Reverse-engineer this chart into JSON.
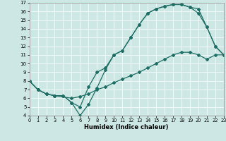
{
  "xlabel": "Humidex (Indice chaleur)",
  "xlim": [
    0,
    23
  ],
  "ylim": [
    4,
    17
  ],
  "xticks": [
    0,
    1,
    2,
    3,
    4,
    5,
    6,
    7,
    8,
    9,
    10,
    11,
    12,
    13,
    14,
    15,
    16,
    17,
    18,
    19,
    20,
    21,
    22,
    23
  ],
  "yticks": [
    4,
    5,
    6,
    7,
    8,
    9,
    10,
    11,
    12,
    13,
    14,
    15,
    16,
    17
  ],
  "bg_color": "#cde8e4",
  "line_color": "#1e6e65",
  "grid_color": "#ffffff",
  "line1_x": [
    0,
    1,
    2,
    3,
    4,
    5,
    6,
    7,
    8,
    9,
    10,
    11,
    12,
    13,
    14,
    15,
    16,
    17,
    18,
    19,
    20,
    21,
    22,
    23
  ],
  "line1_y": [
    8.0,
    7.0,
    6.5,
    6.3,
    6.3,
    5.5,
    4.0,
    5.3,
    7.2,
    9.3,
    11.0,
    11.5,
    13.0,
    14.5,
    15.8,
    16.3,
    16.6,
    16.8,
    16.8,
    16.5,
    16.3,
    14.2,
    12.0,
    11.0
  ],
  "line2_x": [
    0,
    1,
    2,
    3,
    4,
    5,
    6,
    7,
    8,
    9,
    10,
    11,
    12,
    13,
    14,
    15,
    16,
    17,
    18,
    19,
    20,
    21,
    22,
    23
  ],
  "line2_y": [
    8.0,
    7.0,
    6.5,
    6.3,
    6.3,
    5.5,
    5.0,
    7.3,
    9.0,
    9.5,
    11.0,
    11.5,
    13.0,
    14.5,
    15.8,
    16.3,
    16.6,
    16.8,
    16.8,
    16.5,
    15.8,
    14.2,
    12.0,
    11.0
  ],
  "line3_x": [
    0,
    1,
    2,
    3,
    5,
    6,
    7,
    8,
    9,
    10,
    11,
    12,
    13,
    14,
    15,
    16,
    17,
    18,
    19,
    20,
    21,
    22,
    23
  ],
  "line3_y": [
    8.0,
    7.0,
    6.5,
    6.3,
    6.0,
    6.2,
    6.5,
    7.0,
    7.3,
    7.8,
    8.2,
    8.6,
    9.0,
    9.5,
    10.0,
    10.5,
    11.0,
    11.3,
    11.3,
    11.0,
    10.5,
    11.0,
    11.0
  ]
}
